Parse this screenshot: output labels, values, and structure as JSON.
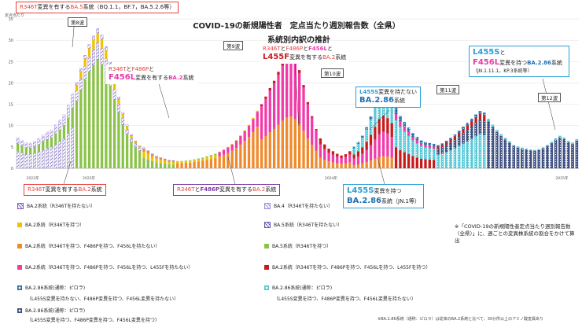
{
  "chart_data": {
    "type": "bar",
    "title": "COVID-19の新規陽性者　定点当たり週別報告数（全県）",
    "subtitle": "系統別内訳の推計",
    "ylabel": "定点当たり",
    "ylim": [
      0,
      35
    ],
    "yticks": [
      0,
      5,
      10,
      15,
      20,
      25,
      30,
      35
    ],
    "year_labels": [
      "2022年",
      "2023年",
      "2024年",
      "2025年"
    ],
    "waves": [
      "第8波",
      "第9波",
      "第10波",
      "第11波",
      "第12波"
    ],
    "weeks": 134,
    "series": [
      {
        "name": "BA.2系統（R346Tを持たない）",
        "color": "#7a5cc8",
        "pattern": "hatch"
      },
      {
        "name": "BA.2系統（R346Tを持つ）",
        "color": "#f2c100"
      },
      {
        "name": "BA.2系統（R346Tを持つ、F486Pを持つ、F456Lを持たない）",
        "color": "#f08a2c"
      },
      {
        "name": "BA.2系統（R346Tを持つ、F486Pを持つ、F456Lを持つ、L455Fを持たない）",
        "color": "#f23aa8"
      },
      {
        "name": "BA.2.86系統(通称：ピロラ)（L455S変異を持たない、F486P変異を持つ、F456L変異を持たない）",
        "color": "#2b6fa8",
        "pattern": "dots"
      },
      {
        "name": "BA.2.86系統(通称：ピロラ)（L455S変異を持つ、F486P変異を持つ、F456L変異を持たない）",
        "color": "#1c8fa8",
        "pattern": "dots"
      },
      {
        "name": "BA.2.86系統(通称：ピロラ)（L455S変異を持つ、F486P変異を持つ、F456L変異を持つ）",
        "color": "#3d4f80",
        "pattern": "dots"
      },
      {
        "name": "BA.4（R346Tを持たない）",
        "color": "#a58fd8",
        "pattern": "hatch"
      },
      {
        "name": "BA.5系統（R346Tを持たない）",
        "color": "#6a55b0",
        "pattern": "hatch"
      },
      {
        "name": "BA.5系統（R346Tを持つ）",
        "color": "#8bc34a"
      },
      {
        "name": "BA.2系統（R346Tを持つ、F486Pを持つ、F456Lを持つ、L455Fを持つ）",
        "color": "#c61c1c"
      },
      {
        "name": "BA.2.86系統(通称：ピロラ)（L455S変異を持つ、F486P変異を持つ、F456L変異を持たない）",
        "color": "#58c8d8",
        "pattern": "dots"
      }
    ],
    "totals": [
      7.2,
      6.5,
      6.0,
      5.9,
      6.3,
      7.0,
      7.8,
      8.5,
      9.0,
      10.2,
      11.3,
      12.6,
      14.8,
      17.5,
      20.1,
      23.4,
      26.5,
      29.0,
      31.0,
      32.7,
      31.2,
      28.5,
      24.8,
      20.6,
      16.7,
      13.1,
      10.2,
      7.9,
      6.4,
      5.3,
      4.8,
      4.2,
      3.4,
      2.8,
      2.5,
      2.2,
      1.9,
      1.8,
      1.7,
      1.7,
      1.8,
      1.9,
      2.1,
      2.3,
      2.5,
      2.8,
      3.1,
      3.4,
      3.9,
      4.4,
      5.0,
      5.7,
      6.6,
      7.7,
      8.9,
      10.2,
      11.8,
      13.5,
      15.0,
      16.8,
      18.8,
      20.5,
      22.6,
      24.8,
      26.3,
      27.0,
      25.6,
      23.0,
      19.5,
      15.5,
      12.2,
      9.2,
      7.0,
      5.6,
      4.6,
      4.0,
      3.4,
      3.0,
      3.3,
      4.0,
      5.0,
      6.1,
      7.6,
      9.6,
      12.1,
      15.0,
      17.8,
      19.0,
      18.1,
      16.3,
      14.1,
      12.2,
      10.8,
      9.5,
      8.2,
      7.3,
      6.5,
      6.1,
      5.9,
      5.7,
      5.4,
      5.8,
      6.4,
      7.1,
      7.9,
      8.8,
      9.7,
      10.6,
      11.6,
      12.6,
      13.4,
      13.0,
      11.6,
      10.2,
      9.0,
      8.0,
      7.1,
      6.3,
      5.5,
      5.1,
      4.8,
      4.6,
      4.4,
      4.3,
      4.5,
      4.9,
      5.5,
      6.2,
      7.0,
      7.6,
      7.2,
      6.4,
      6.0,
      6.8
    ]
  },
  "callouts": {
    "c1_part1": "R346T",
    "c1_part2": "変異を有する",
    "c1_part3": "BA.5",
    "c1_part4": "系統（BQ.1.1，BF.7，BA.5.2.6等）",
    "c2_part1": "R346T",
    "c2_part2": "と",
    "c2_part3": "F486P",
    "c2_part4": "と",
    "c2_part5": "F456L",
    "c2_part6": "変異を有する",
    "c2_part7": "BA.2",
    "c2_part8": "系統",
    "c3_part1": "R346T",
    "c3_part2": "と",
    "c3_part3": "F486P",
    "c3_part4": "と",
    "c3_part5": "F456L",
    "c3_part6": "と",
    "c3_part7": "L455F",
    "c3_part8": "変異を有する",
    "c3_part9": "BA.2",
    "c3_part10": "系統",
    "c4_part1": "L455S",
    "c4_part2": "変異を持たない",
    "c4_part3": "BA.2.86",
    "c4_part4": "系統",
    "c5_part1": "L455S",
    "c5_part2": "と",
    "c5_part3": "F456L",
    "c5_part4": "変異を持つ",
    "c5_part5": "BA.2.86",
    "c5_part6": "系統",
    "c5_part7": "（JN.1.11.1，KP.3系統等）",
    "c6_part1": "R346T",
    "c6_part2": "変異を有する",
    "c6_part3": "BA.2",
    "c6_part4": "系統",
    "c7_part1": "R346T",
    "c7_part2": "と",
    "c7_part3": "F486P",
    "c7_part4": "変異を有する",
    "c7_part5": "BA.2",
    "c7_part6": "系統",
    "c8_part1": "L455S",
    "c8_part2": "変異を持つ",
    "c8_part3": "BA.2.86",
    "c8_part4": "系統（JN.1等）"
  },
  "legend": [
    "BA.2系統（R346Tを持たない）",
    "BA.4（R346Tを持たない）",
    "BA.2系統（R346Tを持つ）",
    "BA.5系統（R346Tを持たない）",
    "BA.2系統（R346Tを持つ、F486Pを持つ、F456Lを持たない）",
    "BA.5系統（R346Tを持つ）",
    "BA.2系統（R346Tを持つ、F486Pを持つ、F456Lを持つ、L455Fを持たない）",
    "BA.2系統（R346Tを持つ、F486Pを持つ、F456Lを持つ、L455Fを持つ）",
    "BA.2.86系統(通称：ピロラ)",
    "BA.2.86系統(通称：ピロラ)",
    "（L455S変異を持たない、F486P変異を持つ、F456L変異を持たない）",
    "（L455S変異を持つ、F486P変異を持つ、F456L変異を持たない）",
    "BA.2.86系統(通称：ピロラ)",
    "（L455S変異を持つ、F486P変異を持つ、F456L変異を持つ）"
  ],
  "note": "※「COVID-19の新規陽性者定点当たり週別報告数（全県）」に、週ごとの変異株系統の割合をかけて算出",
  "footnote": "※BA.2.86系統（通称：ピロラ）は従来のBA.2系統と比べて、30か所以上のアミノ酸変異あり"
}
